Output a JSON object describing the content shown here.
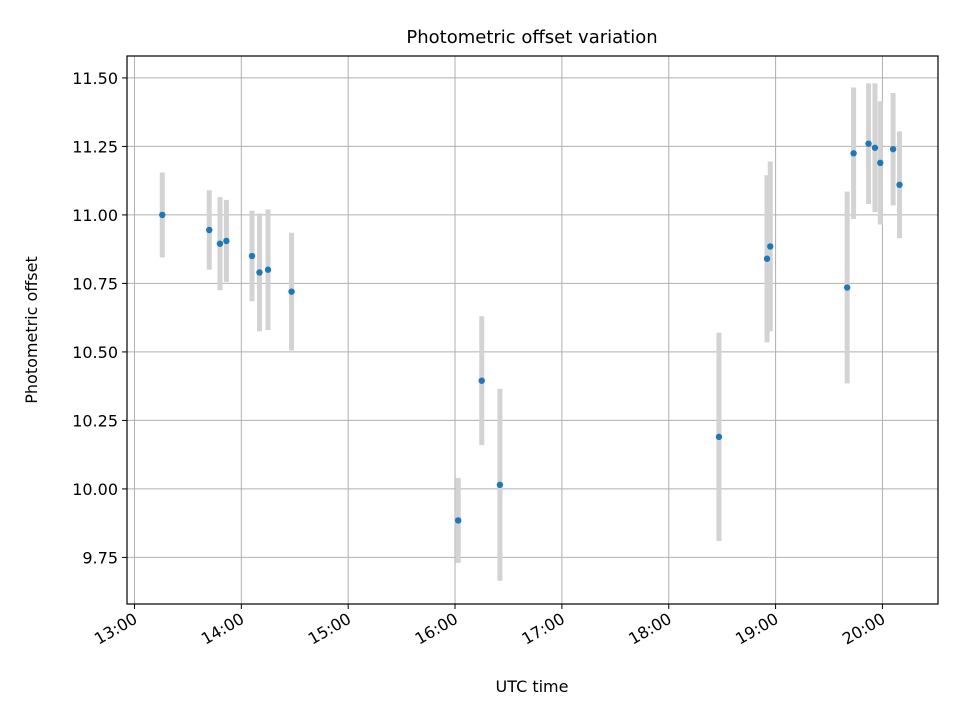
{
  "chart_data": {
    "type": "scatter",
    "title": "Photometric offset variation",
    "xlabel": "UTC time",
    "ylabel": "Photometric offset",
    "x_unit": "hours",
    "xlim": [
      12.93,
      20.52
    ],
    "ylim": [
      9.58,
      11.58
    ],
    "xticks": [
      13,
      14,
      15,
      16,
      17,
      18,
      19,
      20
    ],
    "xtick_labels": [
      "13:00",
      "14:00",
      "15:00",
      "16:00",
      "17:00",
      "18:00",
      "19:00",
      "20:00"
    ],
    "yticks": [
      9.75,
      10.0,
      10.25,
      10.5,
      10.75,
      11.0,
      11.25,
      11.5
    ],
    "ytick_labels": [
      "9.75",
      "10.00",
      "10.25",
      "10.50",
      "10.75",
      "11.00",
      "11.25",
      "11.50"
    ],
    "grid": true,
    "colors": {
      "point": "#1f77b4",
      "errorbar": "#d3d3d3",
      "grid": "#b0b0b0"
    },
    "points": [
      {
        "x": 13.26,
        "y": 11.0,
        "err": 0.155
      },
      {
        "x": 13.7,
        "y": 10.945,
        "err": 0.145
      },
      {
        "x": 13.8,
        "y": 10.895,
        "err": 0.17
      },
      {
        "x": 13.86,
        "y": 10.905,
        "err": 0.15
      },
      {
        "x": 14.1,
        "y": 10.85,
        "err": 0.165
      },
      {
        "x": 14.17,
        "y": 10.79,
        "err": 0.215
      },
      {
        "x": 14.25,
        "y": 10.8,
        "err": 0.22
      },
      {
        "x": 14.47,
        "y": 10.72,
        "err": 0.215
      },
      {
        "x": 16.03,
        "y": 9.885,
        "err": 0.155
      },
      {
        "x": 16.25,
        "y": 10.395,
        "err": 0.235
      },
      {
        "x": 16.42,
        "y": 10.015,
        "err": 0.35
      },
      {
        "x": 18.47,
        "y": 10.19,
        "err": 0.38
      },
      {
        "x": 18.92,
        "y": 10.84,
        "err": 0.305
      },
      {
        "x": 18.95,
        "y": 10.885,
        "err": 0.31
      },
      {
        "x": 19.67,
        "y": 10.735,
        "err": 0.35
      },
      {
        "x": 19.73,
        "y": 11.225,
        "err": 0.24
      },
      {
        "x": 19.87,
        "y": 11.26,
        "err": 0.22
      },
      {
        "x": 19.93,
        "y": 11.245,
        "err": 0.235
      },
      {
        "x": 19.98,
        "y": 11.19,
        "err": 0.225
      },
      {
        "x": 20.1,
        "y": 11.24,
        "err": 0.205
      },
      {
        "x": 20.16,
        "y": 11.11,
        "err": 0.195
      }
    ]
  }
}
